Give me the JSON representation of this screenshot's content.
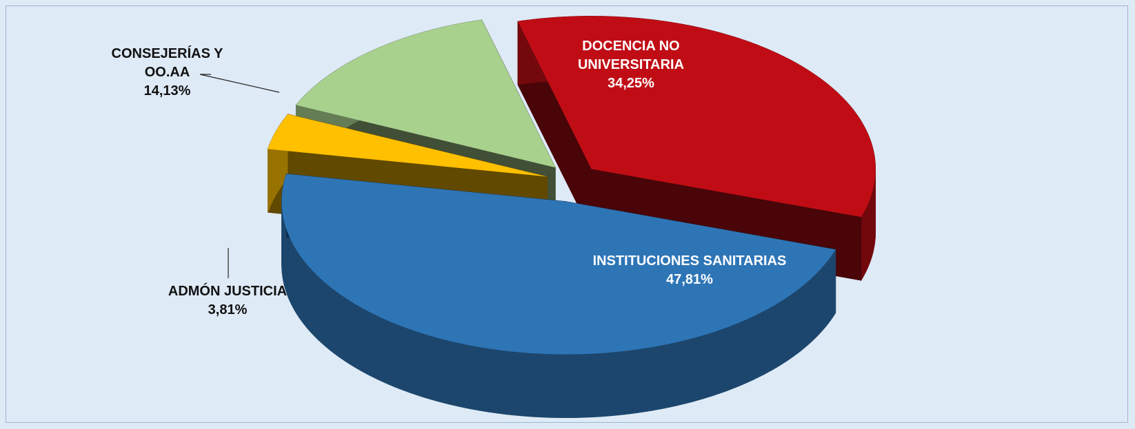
{
  "chart_data": {
    "type": "pie",
    "categories": [
      "DOCENCIA NO UNIVERSITARIA",
      "INSTITUCIONES SANITARIAS",
      "ADMÓN JUSTICIA",
      "CONSEJERÍAS Y OO.AA"
    ],
    "values": [
      34.25,
      47.81,
      3.81,
      14.13
    ],
    "value_labels": [
      "34,25%",
      "47,81%",
      "3,81%",
      "14,13%"
    ],
    "colors": [
      "#c00d15",
      "#2e75b6",
      "#ffc000",
      "#a9d18e"
    ]
  }
}
